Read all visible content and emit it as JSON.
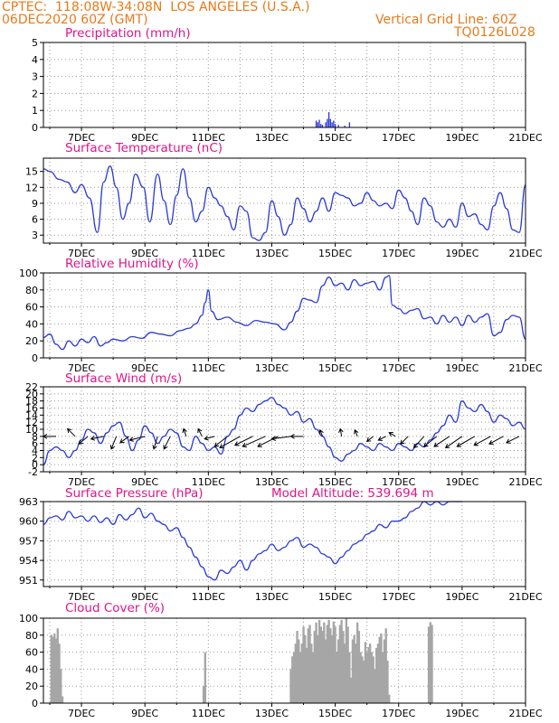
{
  "header": {
    "line1": "CPTEC:  118:08W-34:08N  LOS ANGELES (U.S.A.)",
    "line2": "06DEC2020 60Z (GMT)",
    "grid_note": "Vertical Grid Line: 60Z",
    "run_id": "TQ0126L028"
  },
  "colors": {
    "line": "#2b3bd6",
    "title": "#e0158a",
    "header": "#e87a1a",
    "cloud": "#a6a6a6",
    "grid": "#9a9a9a"
  },
  "x_axis": {
    "range": [
      5.8,
      21.0
    ],
    "ticks": [
      7,
      9,
      11,
      13,
      15,
      17,
      19,
      21
    ],
    "tick_labels": [
      "7DEC",
      "9DEC",
      "11DEC",
      "13DEC",
      "15DEC",
      "17DEC",
      "19DEC",
      "21DEC"
    ]
  },
  "chart_data": [
    {
      "type": "bar",
      "title": "Precipitation (mm/h)",
      "ylim": [
        0,
        5
      ],
      "yticks": [
        0,
        1,
        2,
        3,
        4,
        5
      ],
      "x": [
        14.4,
        14.45,
        14.5,
        14.55,
        14.6,
        14.7,
        14.75,
        14.8,
        14.85,
        14.9,
        14.95,
        15.0,
        15.1,
        15.3,
        15.45
      ],
      "values": [
        0.4,
        0.3,
        0.45,
        0.2,
        0.15,
        0.3,
        0.5,
        0.9,
        0.5,
        0.3,
        0.4,
        0.2,
        0.15,
        0.1,
        0.3
      ]
    },
    {
      "type": "line",
      "title": "Surface Temperature (nC)",
      "ylim": [
        1.5,
        17.5
      ],
      "yticks": [
        3,
        6,
        9,
        12,
        15
      ],
      "x": [
        5.8,
        6.0,
        6.3,
        6.55,
        6.8,
        7.0,
        7.25,
        7.5,
        7.7,
        7.9,
        8.1,
        8.3,
        8.5,
        8.7,
        8.95,
        9.15,
        9.4,
        9.6,
        9.8,
        10.0,
        10.2,
        10.4,
        10.6,
        10.8,
        11.0,
        11.2,
        11.4,
        11.6,
        11.8,
        12.0,
        12.2,
        12.4,
        12.6,
        12.8,
        13.0,
        13.2,
        13.4,
        13.6,
        13.8,
        14.0,
        14.2,
        14.4,
        14.6,
        14.8,
        15.0,
        15.2,
        15.4,
        15.6,
        15.8,
        16.0,
        16.2,
        16.4,
        16.6,
        16.8,
        17.0,
        17.2,
        17.4,
        17.6,
        17.8,
        18.0,
        18.2,
        18.4,
        18.6,
        18.8,
        19.0,
        19.2,
        19.4,
        19.6,
        19.8,
        20.0,
        20.2,
        20.4,
        20.6,
        20.8,
        21.0
      ],
      "values": [
        15.5,
        15.0,
        13.5,
        13.0,
        11.0,
        12.5,
        10.0,
        3.5,
        13.0,
        16.0,
        12.0,
        6.0,
        9.0,
        14.5,
        12.0,
        5.5,
        14.5,
        9.5,
        5.0,
        10.5,
        15.5,
        10.0,
        5.5,
        7.5,
        12.0,
        10.0,
        8.5,
        6.5,
        4.0,
        8.5,
        7.5,
        2.5,
        2.0,
        3.5,
        9.5,
        6.5,
        3.0,
        5.0,
        10.0,
        8.0,
        5.5,
        7.5,
        10.0,
        7.5,
        11.0,
        10.5,
        10.0,
        8.5,
        9.0,
        11.0,
        9.5,
        8.5,
        9.0,
        8.0,
        11.5,
        10.0,
        7.5,
        5.0,
        10.0,
        8.5,
        5.5,
        4.5,
        6.0,
        4.5,
        9.0,
        6.5,
        7.0,
        5.0,
        4.0,
        8.5,
        11.0,
        8.0,
        4.0,
        3.5,
        12.5
      ]
    },
    {
      "type": "line",
      "title": "Relative Humidity (%)",
      "ylim": [
        0,
        100
      ],
      "yticks": [
        0,
        20,
        40,
        60,
        80,
        100
      ],
      "x": [
        5.8,
        6.0,
        6.2,
        6.4,
        6.6,
        6.8,
        7.0,
        7.2,
        7.4,
        7.6,
        7.8,
        8.0,
        8.3,
        8.6,
        8.9,
        9.2,
        9.5,
        9.8,
        10.1,
        10.4,
        10.6,
        10.8,
        10.9,
        11.0,
        11.1,
        11.3,
        11.6,
        11.9,
        12.2,
        12.5,
        12.8,
        13.1,
        13.4,
        13.6,
        13.8,
        14.0,
        14.2,
        14.4,
        14.6,
        14.8,
        15.0,
        15.2,
        15.4,
        15.6,
        15.8,
        16.0,
        16.2,
        16.4,
        16.6,
        16.7,
        16.8,
        17.0,
        17.2,
        17.4,
        17.6,
        17.8,
        18.0,
        18.2,
        18.4,
        18.6,
        18.8,
        19.0,
        19.2,
        19.4,
        19.6,
        19.8,
        20.0,
        20.2,
        20.4,
        20.6,
        20.8,
        21.0
      ],
      "values": [
        24,
        28,
        16,
        10,
        20,
        14,
        22,
        18,
        25,
        14,
        18,
        22,
        20,
        25,
        23,
        30,
        28,
        26,
        32,
        35,
        40,
        50,
        65,
        80,
        55,
        45,
        48,
        42,
        38,
        44,
        42,
        40,
        33,
        42,
        55,
        70,
        68,
        65,
        85,
        95,
        85,
        88,
        80,
        92,
        85,
        88,
        90,
        80,
        95,
        97,
        62,
        58,
        52,
        56,
        58,
        46,
        48,
        40,
        50,
        42,
        48,
        38,
        50,
        42,
        48,
        52,
        26,
        30,
        45,
        50,
        48,
        22
      ]
    },
    {
      "type": "line",
      "title": "Surface Wind (m/s)",
      "ylim": [
        -2,
        22
      ],
      "yticks": [
        -2,
        0,
        2,
        4,
        6,
        8,
        10,
        12,
        14,
        16,
        18,
        20,
        22
      ],
      "x": [
        5.8,
        6.0,
        6.2,
        6.4,
        6.6,
        6.8,
        7.0,
        7.2,
        7.4,
        7.6,
        7.8,
        8.0,
        8.2,
        8.4,
        8.6,
        8.8,
        9.0,
        9.2,
        9.4,
        9.6,
        9.8,
        10.0,
        10.2,
        10.4,
        10.6,
        10.8,
        11.0,
        11.2,
        11.4,
        11.6,
        11.8,
        12.0,
        12.2,
        12.4,
        12.6,
        12.8,
        13.0,
        13.2,
        13.4,
        13.6,
        13.8,
        14.0,
        14.2,
        14.4,
        14.6,
        14.8,
        15.0,
        15.2,
        15.4,
        15.6,
        15.8,
        16.0,
        16.2,
        16.4,
        16.6,
        16.8,
        17.0,
        17.2,
        17.4,
        17.6,
        17.8,
        18.0,
        18.2,
        18.4,
        18.6,
        18.8,
        19.0,
        19.2,
        19.4,
        19.6,
        19.8,
        20.0,
        20.2,
        20.4,
        20.6,
        20.8,
        21.0
      ],
      "values": [
        0,
        4,
        5,
        4,
        2,
        4,
        7,
        10,
        9,
        6,
        9,
        11,
        12,
        8,
        4,
        7,
        11,
        9,
        6,
        8,
        10,
        9,
        5,
        4,
        8,
        6,
        4,
        5,
        3,
        8,
        10,
        14,
        16,
        15,
        17,
        18,
        19,
        17,
        16,
        14,
        15,
        12,
        13,
        10,
        8,
        5,
        2,
        1,
        3,
        4,
        6,
        5,
        4,
        6,
        5,
        4,
        6,
        5,
        4,
        6,
        5,
        7,
        9,
        11,
        14,
        12,
        18,
        16,
        15,
        17,
        15,
        12,
        14,
        13,
        11,
        12,
        10
      ],
      "arrows": [
        {
          "x": 6.2,
          "u": -1.0,
          "v": 0.0
        },
        {
          "x": 6.8,
          "u": -0.6,
          "v": 0.6
        },
        {
          "x": 7.2,
          "u": -0.7,
          "v": -0.6
        },
        {
          "x": 7.7,
          "u": -1.0,
          "v": -0.2
        },
        {
          "x": 8.1,
          "u": -0.4,
          "v": -1.0
        },
        {
          "x": 8.5,
          "u": -0.7,
          "v": -0.5
        },
        {
          "x": 9.0,
          "u": -1.2,
          "v": -0.3
        },
        {
          "x": 9.4,
          "u": -0.3,
          "v": -1.0
        },
        {
          "x": 9.8,
          "u": -0.5,
          "v": -1.0
        },
        {
          "x": 10.3,
          "u": -0.2,
          "v": 0.6
        },
        {
          "x": 10.8,
          "u": -0.3,
          "v": 0.6
        },
        {
          "x": 11.2,
          "u": -0.8,
          "v": -0.2
        },
        {
          "x": 11.6,
          "u": -1.0,
          "v": -0.8
        },
        {
          "x": 12.0,
          "u": -1.6,
          "v": -0.9
        },
        {
          "x": 12.4,
          "u": -1.4,
          "v": -0.7
        },
        {
          "x": 12.8,
          "u": -1.8,
          "v": -0.8
        },
        {
          "x": 13.2,
          "u": -1.6,
          "v": -0.8
        },
        {
          "x": 13.6,
          "u": -1.5,
          "v": -0.2
        },
        {
          "x": 14.0,
          "u": -1.0,
          "v": 0.0
        },
        {
          "x": 14.6,
          "u": -0.2,
          "v": 0.5
        },
        {
          "x": 15.2,
          "u": -0.1,
          "v": 0.6
        },
        {
          "x": 15.7,
          "u": -0.2,
          "v": 0.5
        },
        {
          "x": 16.2,
          "u": -0.5,
          "v": -0.4
        },
        {
          "x": 16.6,
          "u": -0.6,
          "v": -0.3
        },
        {
          "x": 16.9,
          "u": -0.5,
          "v": 0.3
        },
        {
          "x": 17.3,
          "u": -0.6,
          "v": -0.6
        },
        {
          "x": 17.8,
          "u": -0.8,
          "v": -0.9
        },
        {
          "x": 18.2,
          "u": -1.0,
          "v": -0.8
        },
        {
          "x": 18.6,
          "u": -1.2,
          "v": -0.8
        },
        {
          "x": 19.0,
          "u": -1.3,
          "v": -0.9
        },
        {
          "x": 19.4,
          "u": -1.4,
          "v": -0.8
        },
        {
          "x": 19.9,
          "u": -1.3,
          "v": -0.7
        },
        {
          "x": 20.3,
          "u": -1.1,
          "v": -0.6
        },
        {
          "x": 20.8,
          "u": -1.0,
          "v": -0.5
        }
      ]
    },
    {
      "type": "line",
      "title": "Surface Pressure (hPa)",
      "annotation": "Model Altitude: 539.694 m",
      "ylim": [
        950,
        963
      ],
      "yticks": [
        951,
        954,
        957,
        960,
        963
      ],
      "x": [
        5.8,
        6.0,
        6.2,
        6.4,
        6.6,
        6.8,
        7.0,
        7.2,
        7.4,
        7.6,
        7.8,
        8.0,
        8.2,
        8.4,
        8.6,
        8.8,
        9.0,
        9.2,
        9.4,
        9.6,
        9.8,
        10.0,
        10.2,
        10.4,
        10.6,
        10.8,
        11.0,
        11.2,
        11.4,
        11.6,
        11.8,
        12.0,
        12.2,
        12.4,
        12.6,
        12.8,
        13.0,
        13.2,
        13.4,
        13.6,
        13.8,
        14.0,
        14.2,
        14.4,
        14.6,
        14.8,
        15.0,
        15.2,
        15.4,
        15.6,
        15.8,
        16.0,
        16.2,
        16.4,
        16.6,
        16.8,
        17.0,
        17.2,
        17.4,
        17.6,
        17.8,
        18.0,
        18.2,
        18.4,
        18.6,
        18.8,
        19.0
      ],
      "values": [
        959.5,
        960.5,
        960.8,
        960.2,
        961.5,
        960.5,
        960.8,
        960.0,
        960.8,
        959.8,
        960.5,
        959.5,
        961.0,
        960.2,
        961.0,
        962.0,
        960.5,
        961.2,
        960.0,
        959.5,
        958.5,
        959.0,
        957.5,
        956.0,
        954.5,
        953.0,
        951.5,
        951.0,
        952.5,
        952.0,
        953.0,
        954.0,
        952.5,
        954.0,
        955.0,
        955.5,
        956.5,
        955.5,
        956.0,
        957.0,
        957.5,
        956.0,
        956.5,
        956.0,
        955.0,
        954.5,
        953.5,
        954.5,
        955.5,
        956.5,
        957.0,
        958.0,
        958.5,
        959.5,
        959.0,
        960.0,
        960.0,
        960.5,
        961.5,
        962.0,
        963.0,
        962.5,
        963.5,
        962.5,
        963.0,
        963.5,
        963.0
      ]
    },
    {
      "type": "bar",
      "title": "Cloud Cover (%)",
      "ylim": [
        0,
        100
      ],
      "yticks": [
        0,
        20,
        40,
        60,
        80,
        100
      ],
      "x": [
        6.05,
        6.1,
        6.15,
        6.2,
        6.25,
        6.3,
        6.35,
        6.4,
        10.85,
        10.9,
        13.6,
        13.65,
        13.7,
        13.75,
        13.8,
        13.85,
        13.9,
        13.95,
        14.0,
        14.05,
        14.1,
        14.15,
        14.2,
        14.25,
        14.3,
        14.35,
        14.4,
        14.45,
        14.5,
        14.55,
        14.6,
        14.65,
        14.7,
        14.75,
        14.8,
        14.85,
        14.9,
        14.95,
        15.0,
        15.05,
        15.1,
        15.15,
        15.2,
        15.25,
        15.3,
        15.35,
        15.4,
        15.45,
        15.5,
        15.55,
        15.6,
        15.65,
        15.7,
        15.75,
        15.8,
        15.85,
        15.9,
        15.95,
        16.0,
        16.05,
        16.1,
        16.15,
        16.2,
        16.25,
        16.3,
        16.35,
        16.4,
        16.45,
        16.5,
        16.55,
        16.6,
        16.65,
        16.7,
        17.95,
        18.0,
        18.05
      ],
      "values": [
        80,
        78,
        82,
        76,
        88,
        70,
        40,
        8,
        20,
        60,
        40,
        55,
        60,
        70,
        85,
        75,
        60,
        70,
        90,
        80,
        65,
        88,
        92,
        70,
        60,
        85,
        95,
        80,
        98,
        90,
        85,
        95,
        75,
        92,
        98,
        88,
        80,
        96,
        90,
        60,
        75,
        92,
        98,
        85,
        70,
        100,
        90,
        60,
        30,
        75,
        80,
        70,
        95,
        85,
        60,
        55,
        50,
        72,
        60,
        66,
        70,
        60,
        55,
        40,
        65,
        70,
        78,
        82,
        60,
        75,
        88,
        50,
        10,
        90,
        95,
        92
      ]
    }
  ]
}
